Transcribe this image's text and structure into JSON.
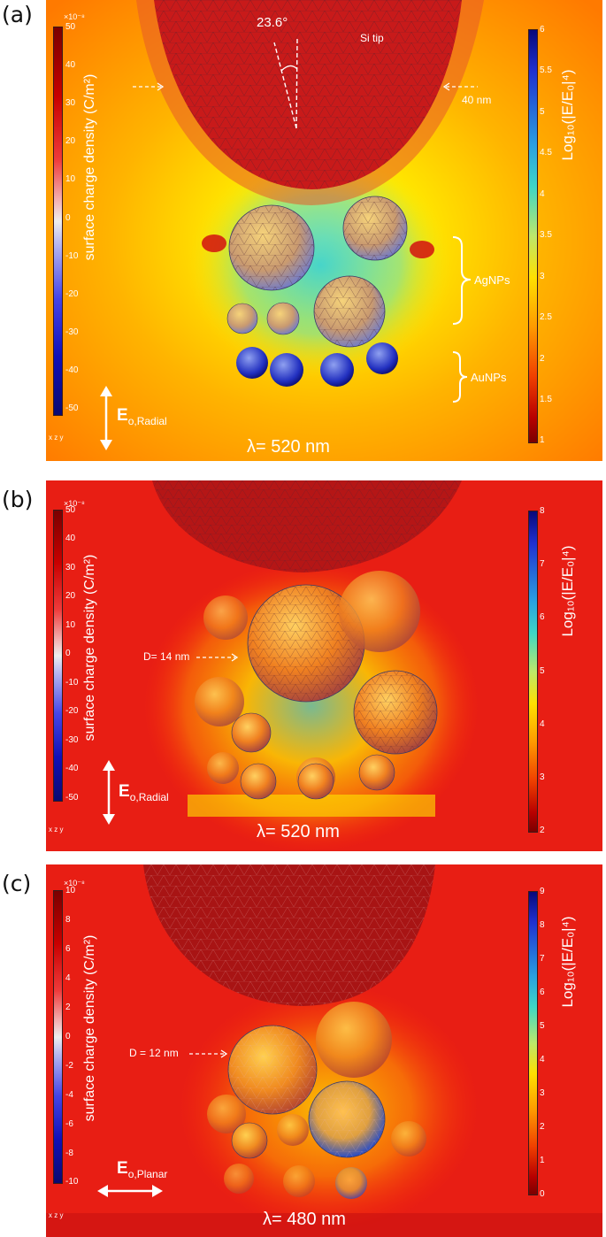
{
  "panels": {
    "a": {
      "label": "(a)",
      "left_axis_title": "surface charge density (C/m²)",
      "left_exponent": "×10⁻⁸",
      "left_ticks": [
        "50",
        "40",
        "30",
        "20",
        "10",
        "0",
        "-10",
        "-20",
        "-30",
        "-40",
        "-50"
      ],
      "right_axis_title": "Log₁₀(|E/E₀|⁴)",
      "right_ticks": [
        "6",
        "5.5",
        "5",
        "4.5",
        "4",
        "3.5",
        "3",
        "2.5",
        "2",
        "1.5",
        "1"
      ],
      "angle_label": "23.6°",
      "tip_label": "Si tip",
      "thickness_label": "40 nm",
      "agnp_label": "AgNPs",
      "aunp_label": "AuNPs",
      "field_main": "E",
      "field_sub": "o,Radial",
      "wavelength": "λ= 520 nm",
      "axes_label": "x z y"
    },
    "b": {
      "label": "(b)",
      "left_axis_title": "surface charge density (C/m²)",
      "left_exponent": "×10⁻⁸",
      "left_ticks": [
        "50",
        "40",
        "30",
        "20",
        "10",
        "0",
        "-10",
        "-20",
        "-30",
        "-40",
        "-50"
      ],
      "right_axis_title": "Log₁₀(|E/E₀|⁴)",
      "right_ticks": [
        "8",
        "7",
        "6",
        "5",
        "4",
        "3",
        "2"
      ],
      "diameter_label": "D= 14 nm",
      "field_main": "E",
      "field_sub": "o,Radial",
      "wavelength": "λ= 520 nm",
      "axes_label": "x z y"
    },
    "c": {
      "label": "(c)",
      "left_axis_title": "surface charge density (C/m²)",
      "left_exponent": "×10⁻⁸",
      "left_ticks": [
        "10",
        "8",
        "6",
        "4",
        "2",
        "0",
        "-2",
        "-4",
        "-6",
        "-8",
        "-10"
      ],
      "right_axis_title": "Log₁₀(|E/E₀|⁴)",
      "right_ticks": [
        "9",
        "8",
        "7",
        "6",
        "5",
        "4",
        "3",
        "2",
        "1",
        "0"
      ],
      "diameter_label": "D = 12 nm",
      "field_main": "E",
      "field_sub": "o,Planar",
      "wavelength": "λ= 480 nm",
      "axes_label": "x z y"
    }
  },
  "colors": {
    "hot": "#e01414",
    "warm": "#ff9a00",
    "yellow": "#ffe200",
    "cyan": "#3ed6c6",
    "blue": "#1a2bd0",
    "tip": "#b01818"
  }
}
